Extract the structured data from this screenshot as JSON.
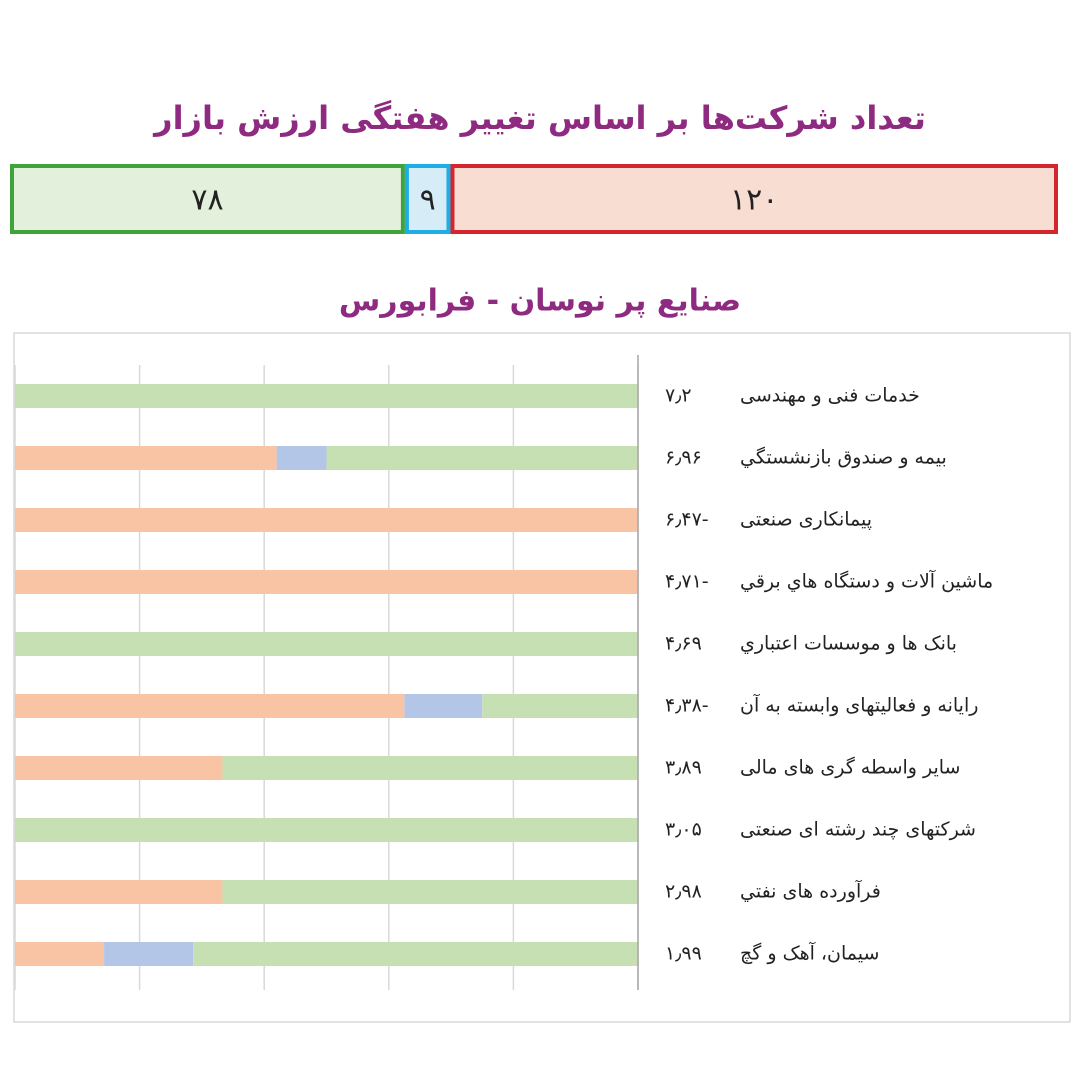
{
  "chart_data": [
    {
      "type": "strip",
      "title": "تعداد شرکت‌ها بر اساس تغییر هفتگی ارزش بازار",
      "values": [
        78,
        9,
        120
      ],
      "value_labels": [
        "۷۸",
        "۹",
        "۱۲۰"
      ],
      "colors": [
        "#3ea43a",
        "#1eaee6",
        "#d3262d"
      ],
      "fills": [
        "#e3f0dc",
        "#d6edf8",
        "#f7ddd2"
      ]
    },
    {
      "type": "stacked-hbar",
      "title": "صنایع پر نوسان - فرابورس",
      "categories": [
        "خدمات فنی و مهندسی",
        "بیمه و صندوق بازنشستگي",
        "پیمانکاری صنعتی",
        "ماشین آلات و دستگاه هاي برقي",
        "بانک ها و موسسات اعتباري",
        "رایانه و فعالیتهای وابسته به آن",
        "سایر واسطه گری های مالی",
        "شرکتهای چند رشته ای صنعتی",
        "فرآورده های نفتي",
        "سیمان، آهک و گچ"
      ],
      "changes": [
        7.2,
        6.96,
        -6.47,
        -4.71,
        4.69,
        -4.38,
        3.89,
        3.05,
        2.98,
        1.99
      ],
      "change_labels": [
        "۷٫۲",
        "۶٫۹۶",
        "۶٫۴۷-",
        "۴٫۷۱-",
        "۴٫۶۹",
        "۴٫۳۸-",
        "۳٫۸۹",
        "۳٫۰۵",
        "۲٫۹۸",
        "۱٫۹۹"
      ],
      "series": [
        {
          "color": "#f8c4a4",
          "values": [
            0,
            42,
            100,
            100,
            0,
            62.5,
            33.3,
            0,
            33.3,
            14.3
          ]
        },
        {
          "color": "#b4c6e8",
          "values": [
            0,
            8,
            0,
            0,
            0,
            12.5,
            0,
            0,
            0,
            14.3
          ]
        },
        {
          "color": "#c6e0b4",
          "values": [
            100,
            50,
            0,
            0,
            100,
            25,
            66.7,
            100,
            66.7,
            71.4
          ]
        }
      ],
      "xlim": [
        0,
        100
      ],
      "xticks": [
        0,
        20,
        40,
        60,
        80,
        100
      ],
      "grid": true
    }
  ]
}
